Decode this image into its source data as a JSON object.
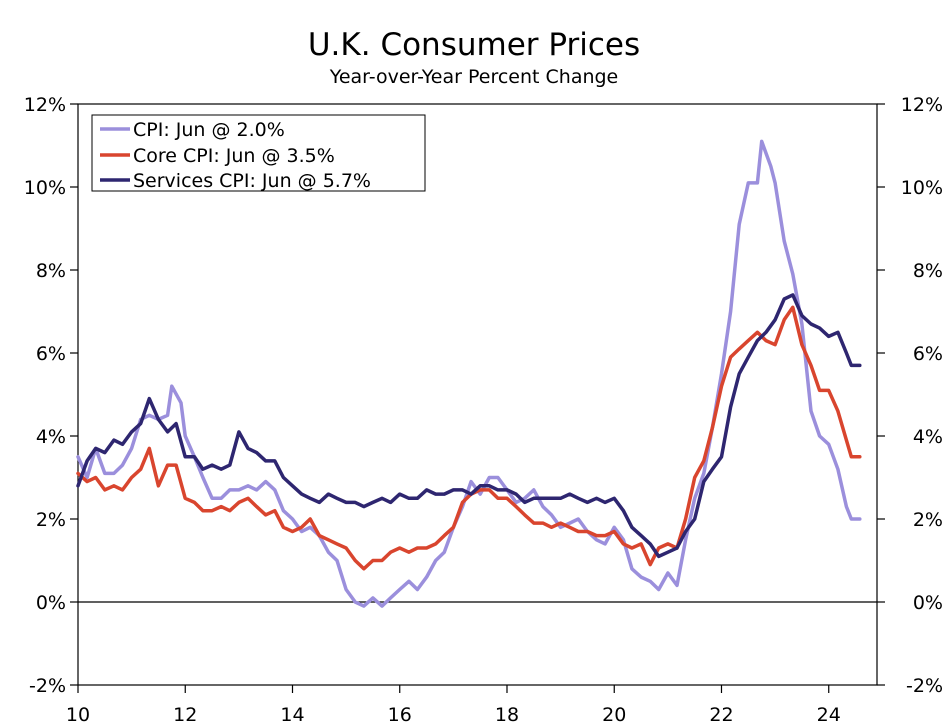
{
  "chart_data": {
    "type": "line",
    "title": "U.K. Consumer Prices",
    "subtitle": "Year-over-Year Percent Change",
    "xlabel": "",
    "ylabel": "",
    "xlim": [
      2010.0,
      2024.9
    ],
    "ylim": [
      -2,
      12
    ],
    "y_ticks": [
      -2,
      0,
      2,
      4,
      6,
      8,
      10,
      12
    ],
    "y_tick_labels": [
      "-2%",
      "0%",
      "2%",
      "4%",
      "6%",
      "8%",
      "10%",
      "12%"
    ],
    "x_ticks": [
      2010,
      2012,
      2014,
      2016,
      2018,
      2020,
      2022,
      2024
    ],
    "x_tick_labels": [
      "10",
      "12",
      "14",
      "16",
      "18",
      "20",
      "22",
      "24"
    ],
    "zero_line": 0,
    "legend_position": "top-left",
    "series": [
      {
        "name": "CPI",
        "legend": "CPI: Jun @ 2.0%",
        "color": "#9b8fdc",
        "points": [
          [
            2010.0,
            3.5
          ],
          [
            2010.17,
            3.0
          ],
          [
            2010.33,
            3.7
          ],
          [
            2010.5,
            3.1
          ],
          [
            2010.67,
            3.1
          ],
          [
            2010.83,
            3.3
          ],
          [
            2011.0,
            3.7
          ],
          [
            2011.17,
            4.4
          ],
          [
            2011.33,
            4.5
          ],
          [
            2011.5,
            4.4
          ],
          [
            2011.67,
            4.5
          ],
          [
            2011.75,
            5.2
          ],
          [
            2011.92,
            4.8
          ],
          [
            2012.0,
            4.0
          ],
          [
            2012.17,
            3.5
          ],
          [
            2012.33,
            3.0
          ],
          [
            2012.5,
            2.5
          ],
          [
            2012.67,
            2.5
          ],
          [
            2012.83,
            2.7
          ],
          [
            2013.0,
            2.7
          ],
          [
            2013.17,
            2.8
          ],
          [
            2013.33,
            2.7
          ],
          [
            2013.5,
            2.9
          ],
          [
            2013.67,
            2.7
          ],
          [
            2013.83,
            2.2
          ],
          [
            2014.0,
            2.0
          ],
          [
            2014.17,
            1.7
          ],
          [
            2014.33,
            1.8
          ],
          [
            2014.5,
            1.6
          ],
          [
            2014.67,
            1.2
          ],
          [
            2014.83,
            1.0
          ],
          [
            2015.0,
            0.3
          ],
          [
            2015.17,
            0.0
          ],
          [
            2015.33,
            -0.1
          ],
          [
            2015.5,
            0.1
          ],
          [
            2015.67,
            -0.1
          ],
          [
            2015.83,
            0.1
          ],
          [
            2016.0,
            0.3
          ],
          [
            2016.17,
            0.5
          ],
          [
            2016.33,
            0.3
          ],
          [
            2016.5,
            0.6
          ],
          [
            2016.67,
            1.0
          ],
          [
            2016.83,
            1.2
          ],
          [
            2017.0,
            1.8
          ],
          [
            2017.17,
            2.3
          ],
          [
            2017.33,
            2.9
          ],
          [
            2017.5,
            2.6
          ],
          [
            2017.67,
            3.0
          ],
          [
            2017.83,
            3.0
          ],
          [
            2018.0,
            2.7
          ],
          [
            2018.17,
            2.4
          ],
          [
            2018.33,
            2.5
          ],
          [
            2018.5,
            2.7
          ],
          [
            2018.67,
            2.3
          ],
          [
            2018.83,
            2.1
          ],
          [
            2019.0,
            1.8
          ],
          [
            2019.17,
            1.9
          ],
          [
            2019.33,
            2.0
          ],
          [
            2019.5,
            1.7
          ],
          [
            2019.67,
            1.5
          ],
          [
            2019.83,
            1.4
          ],
          [
            2020.0,
            1.8
          ],
          [
            2020.17,
            1.5
          ],
          [
            2020.33,
            0.8
          ],
          [
            2020.5,
            0.6
          ],
          [
            2020.67,
            0.5
          ],
          [
            2020.83,
            0.3
          ],
          [
            2021.0,
            0.7
          ],
          [
            2021.17,
            0.4
          ],
          [
            2021.33,
            1.5
          ],
          [
            2021.5,
            2.5
          ],
          [
            2021.67,
            3.1
          ],
          [
            2021.83,
            4.2
          ],
          [
            2022.0,
            5.5
          ],
          [
            2022.17,
            7.0
          ],
          [
            2022.33,
            9.1
          ],
          [
            2022.5,
            10.1
          ],
          [
            2022.67,
            10.1
          ],
          [
            2022.75,
            11.1
          ],
          [
            2022.92,
            10.5
          ],
          [
            2023.0,
            10.1
          ],
          [
            2023.17,
            8.7
          ],
          [
            2023.33,
            7.9
          ],
          [
            2023.5,
            6.7
          ],
          [
            2023.67,
            4.6
          ],
          [
            2023.83,
            4.0
          ],
          [
            2024.0,
            3.8
          ],
          [
            2024.17,
            3.2
          ],
          [
            2024.33,
            2.3
          ],
          [
            2024.42,
            2.0
          ],
          [
            2024.58,
            2.0
          ]
        ]
      },
      {
        "name": "Core CPI",
        "legend": "Core CPI: Jun @ 3.5%",
        "color": "#d9452e",
        "points": [
          [
            2010.0,
            3.1
          ],
          [
            2010.17,
            2.9
          ],
          [
            2010.33,
            3.0
          ],
          [
            2010.5,
            2.7
          ],
          [
            2010.67,
            2.8
          ],
          [
            2010.83,
            2.7
          ],
          [
            2011.0,
            3.0
          ],
          [
            2011.17,
            3.2
          ],
          [
            2011.33,
            3.7
          ],
          [
            2011.5,
            2.8
          ],
          [
            2011.67,
            3.3
          ],
          [
            2011.83,
            3.3
          ],
          [
            2012.0,
            2.5
          ],
          [
            2012.17,
            2.4
          ],
          [
            2012.33,
            2.2
          ],
          [
            2012.5,
            2.2
          ],
          [
            2012.67,
            2.3
          ],
          [
            2012.83,
            2.2
          ],
          [
            2013.0,
            2.4
          ],
          [
            2013.17,
            2.5
          ],
          [
            2013.33,
            2.3
          ],
          [
            2013.5,
            2.1
          ],
          [
            2013.67,
            2.2
          ],
          [
            2013.83,
            1.8
          ],
          [
            2014.0,
            1.7
          ],
          [
            2014.17,
            1.8
          ],
          [
            2014.33,
            2.0
          ],
          [
            2014.5,
            1.6
          ],
          [
            2014.67,
            1.5
          ],
          [
            2014.83,
            1.4
          ],
          [
            2015.0,
            1.3
          ],
          [
            2015.17,
            1.0
          ],
          [
            2015.33,
            0.8
          ],
          [
            2015.5,
            1.0
          ],
          [
            2015.67,
            1.0
          ],
          [
            2015.83,
            1.2
          ],
          [
            2016.0,
            1.3
          ],
          [
            2016.17,
            1.2
          ],
          [
            2016.33,
            1.3
          ],
          [
            2016.5,
            1.3
          ],
          [
            2016.67,
            1.4
          ],
          [
            2016.83,
            1.6
          ],
          [
            2017.0,
            1.8
          ],
          [
            2017.17,
            2.4
          ],
          [
            2017.33,
            2.6
          ],
          [
            2017.5,
            2.7
          ],
          [
            2017.67,
            2.7
          ],
          [
            2017.83,
            2.5
          ],
          [
            2018.0,
            2.5
          ],
          [
            2018.17,
            2.3
          ],
          [
            2018.33,
            2.1
          ],
          [
            2018.5,
            1.9
          ],
          [
            2018.67,
            1.9
          ],
          [
            2018.83,
            1.8
          ],
          [
            2019.0,
            1.9
          ],
          [
            2019.17,
            1.8
          ],
          [
            2019.33,
            1.7
          ],
          [
            2019.5,
            1.7
          ],
          [
            2019.67,
            1.6
          ],
          [
            2019.83,
            1.6
          ],
          [
            2020.0,
            1.7
          ],
          [
            2020.17,
            1.4
          ],
          [
            2020.33,
            1.3
          ],
          [
            2020.5,
            1.4
          ],
          [
            2020.67,
            0.9
          ],
          [
            2020.83,
            1.3
          ],
          [
            2021.0,
            1.4
          ],
          [
            2021.17,
            1.3
          ],
          [
            2021.33,
            2.0
          ],
          [
            2021.5,
            3.0
          ],
          [
            2021.67,
            3.4
          ],
          [
            2021.83,
            4.2
          ],
          [
            2022.0,
            5.2
          ],
          [
            2022.17,
            5.9
          ],
          [
            2022.33,
            6.1
          ],
          [
            2022.5,
            6.3
          ],
          [
            2022.67,
            6.5
          ],
          [
            2022.83,
            6.3
          ],
          [
            2023.0,
            6.2
          ],
          [
            2023.17,
            6.8
          ],
          [
            2023.33,
            7.1
          ],
          [
            2023.5,
            6.2
          ],
          [
            2023.67,
            5.7
          ],
          [
            2023.83,
            5.1
          ],
          [
            2024.0,
            5.1
          ],
          [
            2024.17,
            4.6
          ],
          [
            2024.33,
            3.9
          ],
          [
            2024.42,
            3.5
          ],
          [
            2024.58,
            3.5
          ]
        ]
      },
      {
        "name": "Services CPI",
        "legend": "Services CPI: Jun @ 5.7%",
        "color": "#2e2670",
        "points": [
          [
            2010.0,
            2.8
          ],
          [
            2010.17,
            3.4
          ],
          [
            2010.33,
            3.7
          ],
          [
            2010.5,
            3.6
          ],
          [
            2010.67,
            3.9
          ],
          [
            2010.83,
            3.8
          ],
          [
            2011.0,
            4.1
          ],
          [
            2011.17,
            4.3
          ],
          [
            2011.33,
            4.9
          ],
          [
            2011.5,
            4.4
          ],
          [
            2011.67,
            4.1
          ],
          [
            2011.83,
            4.3
          ],
          [
            2012.0,
            3.5
          ],
          [
            2012.17,
            3.5
          ],
          [
            2012.33,
            3.2
          ],
          [
            2012.5,
            3.3
          ],
          [
            2012.67,
            3.2
          ],
          [
            2012.83,
            3.3
          ],
          [
            2013.0,
            4.1
          ],
          [
            2013.17,
            3.7
          ],
          [
            2013.33,
            3.6
          ],
          [
            2013.5,
            3.4
          ],
          [
            2013.67,
            3.4
          ],
          [
            2013.83,
            3.0
          ],
          [
            2014.0,
            2.8
          ],
          [
            2014.17,
            2.6
          ],
          [
            2014.33,
            2.5
          ],
          [
            2014.5,
            2.4
          ],
          [
            2014.67,
            2.6
          ],
          [
            2014.83,
            2.5
          ],
          [
            2015.0,
            2.4
          ],
          [
            2015.17,
            2.4
          ],
          [
            2015.33,
            2.3
          ],
          [
            2015.5,
            2.4
          ],
          [
            2015.67,
            2.5
          ],
          [
            2015.83,
            2.4
          ],
          [
            2016.0,
            2.6
          ],
          [
            2016.17,
            2.5
          ],
          [
            2016.33,
            2.5
          ],
          [
            2016.5,
            2.7
          ],
          [
            2016.67,
            2.6
          ],
          [
            2016.83,
            2.6
          ],
          [
            2017.0,
            2.7
          ],
          [
            2017.17,
            2.7
          ],
          [
            2017.33,
            2.6
          ],
          [
            2017.5,
            2.8
          ],
          [
            2017.67,
            2.8
          ],
          [
            2017.83,
            2.7
          ],
          [
            2018.0,
            2.7
          ],
          [
            2018.17,
            2.6
          ],
          [
            2018.33,
            2.4
          ],
          [
            2018.5,
            2.5
          ],
          [
            2018.67,
            2.5
          ],
          [
            2018.83,
            2.5
          ],
          [
            2019.0,
            2.5
          ],
          [
            2019.17,
            2.6
          ],
          [
            2019.33,
            2.5
          ],
          [
            2019.5,
            2.4
          ],
          [
            2019.67,
            2.5
          ],
          [
            2019.83,
            2.4
          ],
          [
            2020.0,
            2.5
          ],
          [
            2020.17,
            2.2
          ],
          [
            2020.33,
            1.8
          ],
          [
            2020.5,
            1.6
          ],
          [
            2020.67,
            1.4
          ],
          [
            2020.83,
            1.1
          ],
          [
            2021.0,
            1.2
          ],
          [
            2021.17,
            1.3
          ],
          [
            2021.33,
            1.7
          ],
          [
            2021.5,
            2.0
          ],
          [
            2021.67,
            2.9
          ],
          [
            2021.83,
            3.2
          ],
          [
            2022.0,
            3.5
          ],
          [
            2022.17,
            4.7
          ],
          [
            2022.33,
            5.5
          ],
          [
            2022.5,
            5.9
          ],
          [
            2022.67,
            6.3
          ],
          [
            2022.83,
            6.5
          ],
          [
            2023.0,
            6.8
          ],
          [
            2023.17,
            7.3
          ],
          [
            2023.33,
            7.4
          ],
          [
            2023.5,
            6.9
          ],
          [
            2023.67,
            6.7
          ],
          [
            2023.83,
            6.6
          ],
          [
            2024.0,
            6.4
          ],
          [
            2024.17,
            6.5
          ],
          [
            2024.33,
            6.0
          ],
          [
            2024.42,
            5.7
          ],
          [
            2024.58,
            5.7
          ]
        ]
      }
    ]
  }
}
